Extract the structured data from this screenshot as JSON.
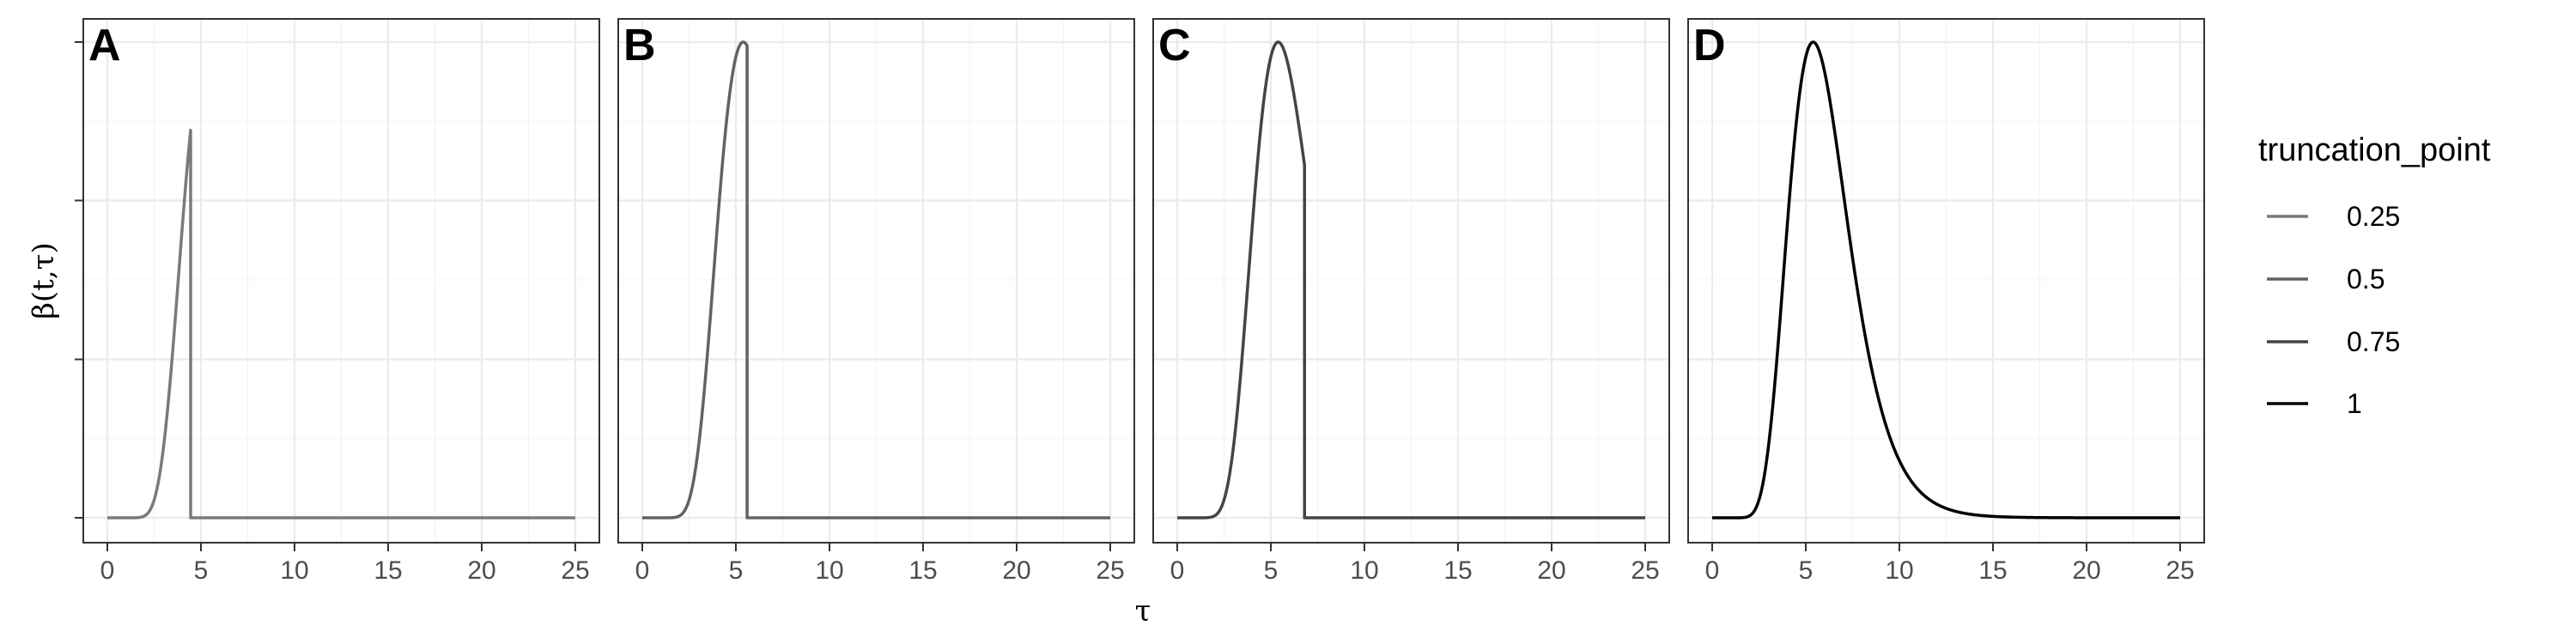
{
  "chart_data": {
    "type": "line",
    "xlabel": "τ",
    "ylabel": "β(t,τ)",
    "xlim": [
      0,
      25
    ],
    "xticks": [
      0,
      5,
      10,
      15,
      20,
      25
    ],
    "ylim": [
      0,
      1.06
    ],
    "grid": true,
    "legend": {
      "title": "truncation_point",
      "placement": "right",
      "entries": [
        {
          "label": "0.25",
          "color": "#7a7a7a"
        },
        {
          "label": "0.5",
          "color": "#626262"
        },
        {
          "label": "0.75",
          "color": "#444444"
        },
        {
          "label": "1",
          "color": "#000000"
        }
      ]
    },
    "curve": {
      "shape": "lognormal",
      "peak_x": 5.2,
      "peak_y": 1.0,
      "log_mean": 1.775,
      "log_sd": 0.3,
      "domain": [
        0,
        25
      ]
    },
    "panels": [
      {
        "tag": "A",
        "series_label": "0.25",
        "truncation_x": 4.45
      },
      {
        "tag": "B",
        "series_label": "0.5",
        "truncation_x": 5.6
      },
      {
        "tag": "C",
        "series_label": "0.75",
        "truncation_x": 6.8
      },
      {
        "tag": "D",
        "series_label": "1",
        "truncation_x": 25
      }
    ]
  }
}
